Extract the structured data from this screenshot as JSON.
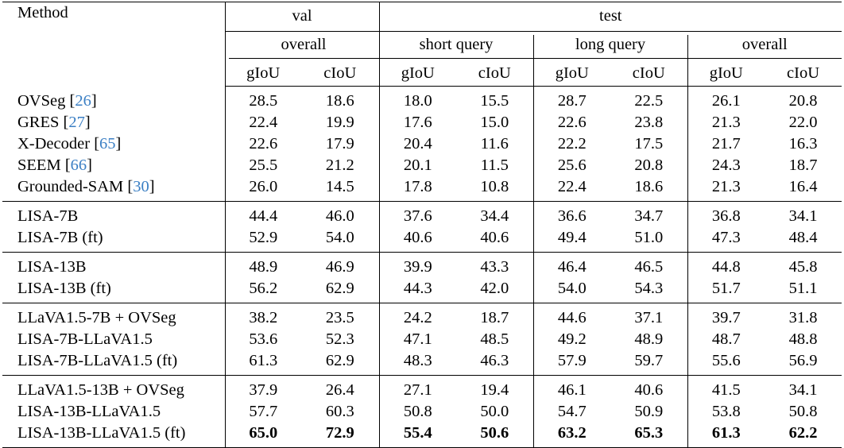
{
  "headers": {
    "method": "Method",
    "val": "val",
    "test": "test",
    "overall": "overall",
    "short_query": "short query",
    "long_query": "long query",
    "giou": "gIoU",
    "ciou": "cIoU"
  },
  "groups": [
    {
      "rows": [
        {
          "name": "OVSeg",
          "cite": "26",
          "values": [
            "28.5",
            "18.6",
            "18.0",
            "15.5",
            "28.7",
            "22.5",
            "26.1",
            "20.8"
          ]
        },
        {
          "name": "GRES",
          "cite": "27",
          "values": [
            "22.4",
            "19.9",
            "17.6",
            "15.0",
            "22.6",
            "23.8",
            "21.3",
            "22.0"
          ]
        },
        {
          "name": "X-Decoder",
          "cite": "65",
          "values": [
            "22.6",
            "17.9",
            "20.4",
            "11.6",
            "22.2",
            "17.5",
            "21.7",
            "16.3"
          ]
        },
        {
          "name": "SEEM",
          "cite": "66",
          "values": [
            "25.5",
            "21.2",
            "20.1",
            "11.5",
            "25.6",
            "20.8",
            "24.3",
            "18.7"
          ]
        },
        {
          "name": "Grounded-SAM",
          "cite": "30",
          "values": [
            "26.0",
            "14.5",
            "17.8",
            "10.8",
            "22.4",
            "18.6",
            "21.3",
            "16.4"
          ]
        }
      ]
    },
    {
      "rows": [
        {
          "name": "LISA-7B",
          "values": [
            "44.4",
            "46.0",
            "37.6",
            "34.4",
            "36.6",
            "34.7",
            "36.8",
            "34.1"
          ]
        },
        {
          "name": "LISA-7B (ft)",
          "values": [
            "52.9",
            "54.0",
            "40.6",
            "40.6",
            "49.4",
            "51.0",
            "47.3",
            "48.4"
          ]
        }
      ]
    },
    {
      "rows": [
        {
          "name": "LISA-13B",
          "values": [
            "48.9",
            "46.9",
            "39.9",
            "43.3",
            "46.4",
            "46.5",
            "44.8",
            "45.8"
          ]
        },
        {
          "name": "LISA-13B (ft)",
          "values": [
            "56.2",
            "62.9",
            "44.3",
            "42.0",
            "54.0",
            "54.3",
            "51.7",
            "51.1"
          ]
        }
      ]
    },
    {
      "rows": [
        {
          "name": "LLaVA1.5-7B + OVSeg",
          "values": [
            "38.2",
            "23.5",
            "24.2",
            "18.7",
            "44.6",
            "37.1",
            "39.7",
            "31.8"
          ]
        },
        {
          "name": "LISA-7B-LLaVA1.5",
          "values": [
            "53.6",
            "52.3",
            "47.1",
            "48.5",
            "49.2",
            "48.9",
            "48.7",
            "48.8"
          ]
        },
        {
          "name": "LISA-7B-LLaVA1.5 (ft)",
          "values": [
            "61.3",
            "62.9",
            "48.3",
            "46.3",
            "57.9",
            "59.7",
            "55.6",
            "56.9"
          ]
        }
      ]
    },
    {
      "rows": [
        {
          "name": "LLaVA1.5-13B + OVSeg",
          "values": [
            "37.9",
            "26.4",
            "27.1",
            "19.4",
            "46.1",
            "40.6",
            "41.5",
            "34.1"
          ]
        },
        {
          "name": "LISA-13B-LLaVA1.5",
          "values": [
            "57.7",
            "60.3",
            "50.8",
            "50.0",
            "54.7",
            "50.9",
            "53.8",
            "50.8"
          ]
        },
        {
          "name": "LISA-13B-LLaVA1.5 (ft)",
          "bold": true,
          "values": [
            "65.0",
            "72.9",
            "55.4",
            "50.6",
            "63.2",
            "65.3",
            "61.3",
            "62.2"
          ]
        }
      ]
    }
  ]
}
